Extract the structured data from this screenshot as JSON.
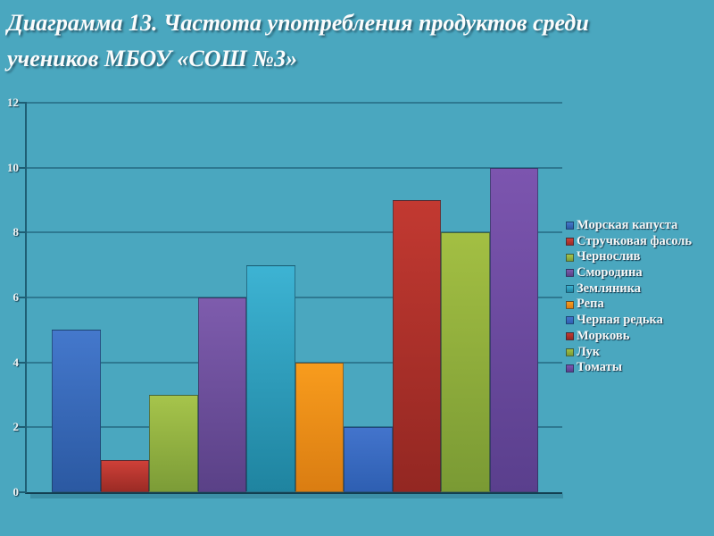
{
  "slide": {
    "title_line1": "Диаграмма 13. Частота употребления продуктов среди",
    "title_line2": "учеников МБОУ «СОШ №3»",
    "background_color": "#4AA7BF"
  },
  "chart_data": {
    "type": "bar",
    "title": "Диаграмма 13. Частота употребления продуктов среди учеников МБОУ «СОШ №3»",
    "categories": [
      "Морская капуста",
      "Стручковая фасоль",
      "Чернослив",
      "Смородина",
      "Земляника",
      "Репа",
      "Черная редька",
      "Морковь",
      "Лук",
      "Томаты"
    ],
    "values": [
      5,
      1,
      3,
      6,
      7,
      4,
      2,
      9,
      8,
      10
    ],
    "xlabel": "",
    "ylabel": "",
    "ylim": [
      0,
      12
    ],
    "yticks": [
      0,
      2,
      4,
      6,
      8,
      10,
      12
    ],
    "grid": "horizontal",
    "legend_position": "right",
    "gridline_color": "#2E7991",
    "axis_color": "#1E5E74",
    "series_colors": [
      {
        "top": "#4478CC",
        "bottom": "#2B59A2"
      },
      {
        "top": "#CE4038",
        "bottom": "#9B2B25"
      },
      {
        "top": "#A6C44B",
        "bottom": "#7C9C37"
      },
      {
        "top": "#7E5CAD",
        "bottom": "#5A4187"
      },
      {
        "top": "#3DB3D3",
        "bottom": "#1F84A0"
      },
      {
        "top": "#F89C1D",
        "bottom": "#DA7D12"
      },
      {
        "top": "#4374CC",
        "bottom": "#2E5FB2"
      },
      {
        "top": "#C23931",
        "bottom": "#932722"
      },
      {
        "top": "#A3BF43",
        "bottom": "#7A9A34"
      },
      {
        "top": "#7C55AF",
        "bottom": "#5A3F8D"
      }
    ]
  }
}
